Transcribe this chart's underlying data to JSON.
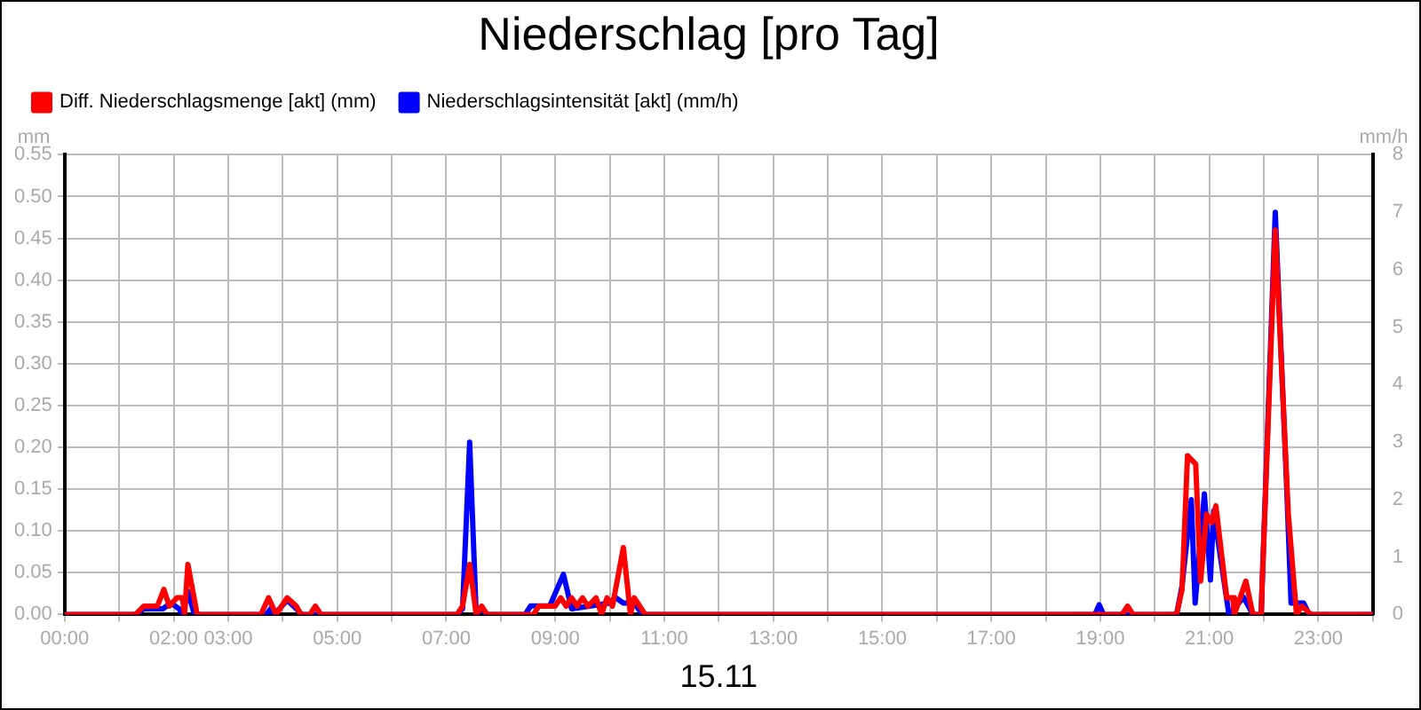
{
  "chart_data": {
    "type": "line",
    "title": "Niederschlag [pro Tag]",
    "xlabel": "15.11",
    "ylabel": "mm",
    "y2label": "mm/h",
    "legend": "top left",
    "grid": true,
    "xlim": [
      0,
      24
    ],
    "xticks": [
      {
        "value": 0,
        "label": "00:00"
      },
      {
        "value": 1,
        "label": null
      },
      {
        "value": 2,
        "label": "02:00"
      },
      {
        "value": 3,
        "label": "03:00"
      },
      {
        "value": 4,
        "label": null
      },
      {
        "value": 5,
        "label": "05:00"
      },
      {
        "value": 6,
        "label": null
      },
      {
        "value": 7,
        "label": "07:00"
      },
      {
        "value": 8,
        "label": null
      },
      {
        "value": 9,
        "label": "09:00"
      },
      {
        "value": 10,
        "label": null
      },
      {
        "value": 11,
        "label": "11:00"
      },
      {
        "value": 12,
        "label": null
      },
      {
        "value": 13,
        "label": "13:00"
      },
      {
        "value": 14,
        "label": null
      },
      {
        "value": 15,
        "label": "15:00"
      },
      {
        "value": 16,
        "label": null
      },
      {
        "value": 17,
        "label": "17:00"
      },
      {
        "value": 18,
        "label": null
      },
      {
        "value": 19,
        "label": "19:00"
      },
      {
        "value": 20,
        "label": null
      },
      {
        "value": 21,
        "label": "21:00"
      },
      {
        "value": 22,
        "label": null
      },
      {
        "value": 23,
        "label": "23:00"
      },
      {
        "value": 24,
        "label": null
      }
    ],
    "ylim": [
      0,
      0.55
    ],
    "yticks": [
      {
        "value": 0,
        "label": "0.00"
      },
      {
        "value": 0.05,
        "label": "0.05"
      },
      {
        "value": 0.1,
        "label": "0.10"
      },
      {
        "value": 0.15,
        "label": "0.15"
      },
      {
        "value": 0.2,
        "label": "0.20"
      },
      {
        "value": 0.25,
        "label": "0.25"
      },
      {
        "value": 0.3,
        "label": "0.30"
      },
      {
        "value": 0.35,
        "label": "0.35"
      },
      {
        "value": 0.4,
        "label": "0.40"
      },
      {
        "value": 0.45,
        "label": "0.45"
      },
      {
        "value": 0.5,
        "label": "0.50"
      },
      {
        "value": 0.55,
        "label": "0.55"
      }
    ],
    "y2lim": [
      0,
      8
    ],
    "y2ticks": [
      0,
      1,
      2,
      3,
      4,
      5,
      6,
      7,
      8
    ],
    "series": [
      {
        "name": "Diff. Niederschlagsmenge [akt] (mm)",
        "color": "#ff0000",
        "x": [
          0,
          1.3,
          1.45,
          1.7,
          1.82,
          1.92,
          2.06,
          2.16,
          2.2,
          2.26,
          2.43,
          3.6,
          3.74,
          3.88,
          4.08,
          4.25,
          4.33,
          4.5,
          4.6,
          4.7,
          7.2,
          7.3,
          7.43,
          7.55,
          7.65,
          7.75,
          8.6,
          8.7,
          9.0,
          9.1,
          9.2,
          9.3,
          9.4,
          9.5,
          9.6,
          9.75,
          9.85,
          9.95,
          10.05,
          10.25,
          10.38,
          10.45,
          10.55,
          10.65,
          19.4,
          19.5,
          19.6,
          20.4,
          20.5,
          20.6,
          20.75,
          20.84,
          20.95,
          21.05,
          21.12,
          21.32,
          21.43,
          21.46,
          21.67,
          21.8,
          21.95,
          22.21,
          22.45,
          22.6,
          22.7,
          22.87,
          24
        ],
        "values": [
          0,
          0,
          0.01,
          0.01,
          0.03,
          0.01,
          0.02,
          0.02,
          0,
          0.06,
          0,
          0,
          0.02,
          0,
          0.02,
          0.01,
          0,
          0,
          0.01,
          0,
          0,
          0.01,
          0.06,
          0,
          0.01,
          0,
          0,
          0.01,
          0.01,
          0.02,
          0.01,
          0.02,
          0.01,
          0.02,
          0.01,
          0.02,
          0,
          0.02,
          0.01,
          0.08,
          0,
          0.02,
          0.01,
          0,
          0,
          0.01,
          0,
          0,
          0.03,
          0.19,
          0.18,
          0.04,
          0.12,
          0.11,
          0.13,
          0.02,
          0.02,
          0,
          0.04,
          0,
          0,
          0.46,
          0.12,
          0,
          0.01,
          0,
          0
        ]
      },
      {
        "name": "Niederschlagsintensität [akt] (mm/h)",
        "color": "#0000ff",
        "axis": "y2",
        "x": [
          0,
          1.3,
          1.45,
          1.8,
          1.95,
          2.1,
          2.16,
          2.26,
          2.38,
          3.7,
          3.78,
          3.85,
          4.08,
          4.25,
          4.35,
          7.2,
          7.3,
          7.43,
          7.55,
          7.65,
          7.75,
          8.45,
          8.55,
          8.9,
          9.15,
          9.3,
          10.0,
          10.1,
          10.25,
          10.45,
          10.6,
          18.9,
          18.98,
          19.06,
          20.4,
          20.5,
          20.67,
          20.74,
          20.91,
          21.02,
          21.08,
          21.36,
          21.63,
          21.8,
          21.95,
          22.21,
          22.42,
          22.5,
          22.6,
          22.73,
          22.83,
          24
        ],
        "values": [
          0,
          0,
          0.1,
          0.1,
          0.2,
          0.1,
          0,
          0.4,
          0,
          0,
          0.1,
          0,
          0.25,
          0.1,
          0,
          0,
          0.1,
          3.0,
          0,
          0.1,
          0,
          0,
          0.15,
          0.15,
          0.7,
          0.1,
          0.2,
          0.3,
          0.2,
          0.2,
          0,
          0,
          0.17,
          0,
          0,
          0.5,
          2.0,
          0.2,
          2.1,
          0.6,
          1.8,
          0,
          0.3,
          0,
          0,
          7.0,
          2.2,
          0.2,
          0.2,
          0.2,
          0,
          0
        ]
      }
    ]
  }
}
